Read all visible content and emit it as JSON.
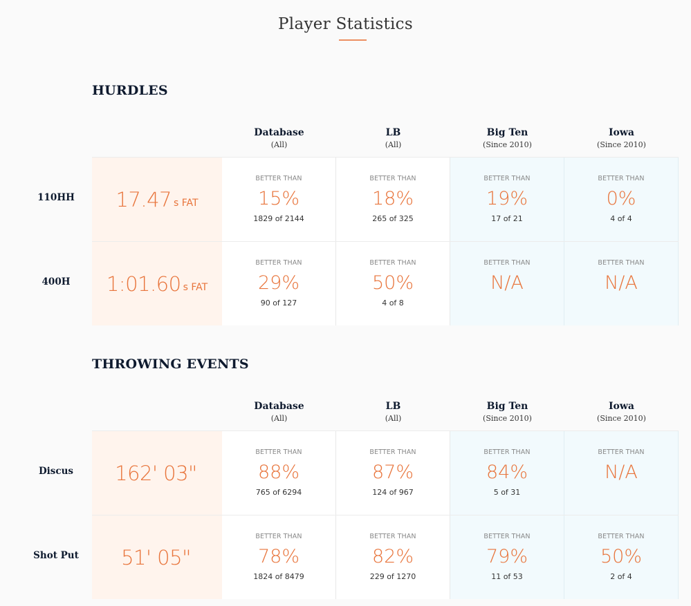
{
  "page": {
    "title": "Player Statistics"
  },
  "columns": [
    {
      "name": "Database",
      "sub": "(All)"
    },
    {
      "name": "LB",
      "sub": "(All)"
    },
    {
      "name": "Big Ten",
      "sub": "(Since 2010)"
    },
    {
      "name": "Iowa",
      "sub": "(Since 2010)"
    }
  ],
  "sections": [
    {
      "title": "HURDLES",
      "rows": [
        {
          "event": "110HH",
          "mark": "17.47",
          "unit": "s FAT",
          "stats": [
            {
              "label": "BETTER THAN",
              "pct": "15%",
              "count": "1829 of 2144"
            },
            {
              "label": "BETTER THAN",
              "pct": "18%",
              "count": "265 of 325"
            },
            {
              "label": "BETTER THAN",
              "pct": "19%",
              "count": "17 of 21"
            },
            {
              "label": "BETTER THAN",
              "pct": "0%",
              "count": "4 of 4"
            }
          ]
        },
        {
          "event": "400H",
          "mark": "1:01.60",
          "unit": "s FAT",
          "stats": [
            {
              "label": "BETTER THAN",
              "pct": "29%",
              "count": "90 of 127"
            },
            {
              "label": "BETTER THAN",
              "pct": "50%",
              "count": "4 of 8"
            },
            {
              "label": "BETTER THAN",
              "pct": "N/A",
              "count": ""
            },
            {
              "label": "BETTER THAN",
              "pct": "N/A",
              "count": ""
            }
          ]
        }
      ]
    },
    {
      "title": "THROWING EVENTS",
      "rows": [
        {
          "event": "Discus",
          "mark": "162' 03\"",
          "unit": "",
          "stats": [
            {
              "label": "BETTER THAN",
              "pct": "88%",
              "count": "765 of 6294"
            },
            {
              "label": "BETTER THAN",
              "pct": "87%",
              "count": "124 of 967"
            },
            {
              "label": "BETTER THAN",
              "pct": "84%",
              "count": "5 of 31"
            },
            {
              "label": "BETTER THAN",
              "pct": "N/A",
              "count": ""
            }
          ]
        },
        {
          "event": "Shot Put",
          "mark": "51' 05\"",
          "unit": "",
          "stats": [
            {
              "label": "BETTER THAN",
              "pct": "78%",
              "count": "1824 of 8479"
            },
            {
              "label": "BETTER THAN",
              "pct": "82%",
              "count": "229 of 1270"
            },
            {
              "label": "BETTER THAN",
              "pct": "79%",
              "count": "11 of 53"
            },
            {
              "label": "BETTER THAN",
              "pct": "50%",
              "count": "2 of 4"
            }
          ]
        }
      ]
    }
  ],
  "colors": {
    "accent": "#e8743b",
    "mark_bg": "#fff4ed",
    "conf_bg": "#f2fafd",
    "heading": "#0e1a2e"
  }
}
